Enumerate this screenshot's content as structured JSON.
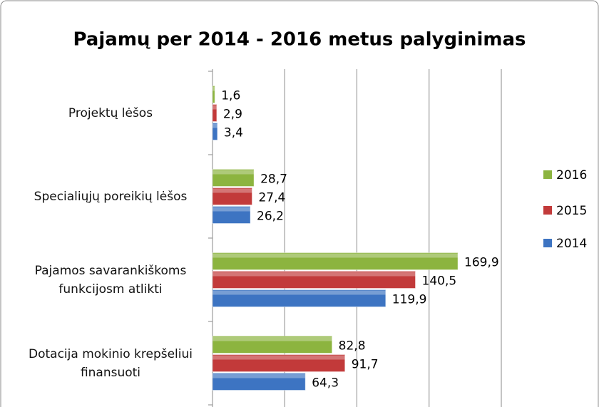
{
  "chart_data": {
    "type": "hbar",
    "title": "Pajamų per 2014 - 2016 metus palyginimas",
    "categories": [
      "Projektų lėšos",
      "Specialiųjų poreikių lėšos",
      "Pajamos savarankiškoms funkcijosm atlikti",
      "Dotacija mokinio krepšeliui finansuoti"
    ],
    "series": [
      {
        "name": "2016",
        "color": "#8cb43f",
        "values": [
          1.6,
          28.7,
          169.9,
          82.8
        ],
        "value_labels": [
          "1,6",
          "28,7",
          "169,9",
          "82,8"
        ]
      },
      {
        "name": "2015",
        "color": "#c23a3a",
        "values": [
          2.9,
          27.4,
          140.5,
          91.7
        ],
        "value_labels": [
          "2,9",
          "27,4",
          "140,5",
          "91,7"
        ]
      },
      {
        "name": "2014",
        "color": "#3d74c2",
        "values": [
          3.4,
          26.2,
          119.9,
          64.3
        ],
        "value_labels": [
          "3,4",
          "26,2",
          "119,9",
          "64,3"
        ]
      }
    ],
    "xlim": [
      0,
      200
    ],
    "xticks": [
      0,
      50,
      100,
      150,
      200
    ],
    "grid": true,
    "legend": "right"
  }
}
